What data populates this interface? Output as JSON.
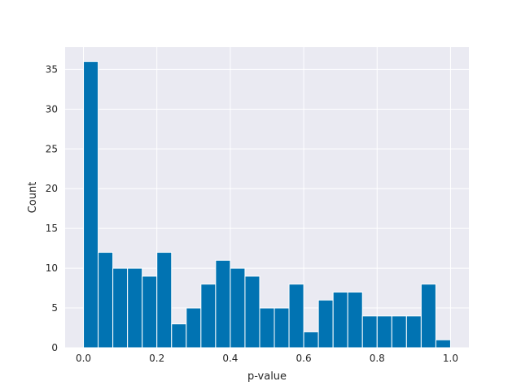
{
  "chart_data": {
    "type": "bar",
    "title": "",
    "xlabel": "p-value",
    "ylabel": "Count",
    "xlim": [
      -0.05,
      1.05
    ],
    "ylim": [
      0,
      37.8
    ],
    "grid": true,
    "bar_color": "#0173b2",
    "background_color": "#eaeaf2",
    "bin_edges": [
      0.0,
      0.04,
      0.08,
      0.12,
      0.16,
      0.2,
      0.24,
      0.28,
      0.32,
      0.36,
      0.4,
      0.44,
      0.48,
      0.52,
      0.56,
      0.6,
      0.64,
      0.68,
      0.72,
      0.76,
      0.8,
      0.84,
      0.88,
      0.92,
      0.96,
      1.0
    ],
    "values": [
      36,
      12,
      10,
      10,
      9,
      12,
      3,
      5,
      8,
      11,
      10,
      9,
      5,
      5,
      8,
      2,
      6,
      7,
      7,
      4,
      4,
      4,
      4,
      8,
      1
    ],
    "x_ticks": [
      {
        "value": 0.0,
        "label": "0.0"
      },
      {
        "value": 0.2,
        "label": "0.2"
      },
      {
        "value": 0.4,
        "label": "0.4"
      },
      {
        "value": 0.6,
        "label": "0.6"
      },
      {
        "value": 0.8,
        "label": "0.8"
      },
      {
        "value": 1.0,
        "label": "1.0"
      }
    ],
    "y_ticks": [
      {
        "value": 0,
        "label": "0"
      },
      {
        "value": 5,
        "label": "5"
      },
      {
        "value": 10,
        "label": "10"
      },
      {
        "value": 15,
        "label": "15"
      },
      {
        "value": 20,
        "label": "20"
      },
      {
        "value": 25,
        "label": "25"
      },
      {
        "value": 30,
        "label": "30"
      },
      {
        "value": 35,
        "label": "35"
      }
    ]
  }
}
